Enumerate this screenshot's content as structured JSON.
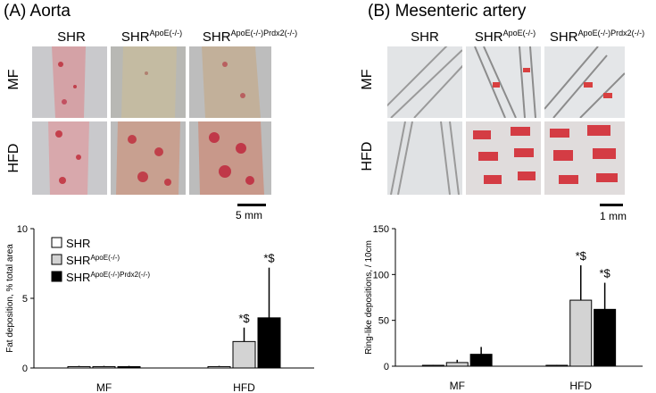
{
  "panelA": {
    "title": "(A) Aorta",
    "col_labels": [
      {
        "base": "SHR",
        "sup": ""
      },
      {
        "base": "SHR",
        "sup": "ApoE(-/-)"
      },
      {
        "base": "SHR",
        "sup": "ApoE(-/-)Prdx2(-/-)"
      }
    ],
    "row_labels": [
      "MF",
      "HFD"
    ],
    "scale_bar": "5 mm"
  },
  "panelB": {
    "title": "(B) Mesenteric artery",
    "col_labels": [
      {
        "base": "SHR",
        "sup": ""
      },
      {
        "base": "SHR",
        "sup": "ApoE(-/-)"
      },
      {
        "base": "SHR",
        "sup": "ApoE(-/-)Prdx2(-/-)"
      }
    ],
    "row_labels": [
      "MF",
      "HFD"
    ],
    "scale_bar": "1 mm"
  },
  "colors": {
    "shr": "#ffffff",
    "apoe": "#d3d3d3",
    "prdx2": "#000000",
    "stain": "#d8323c"
  },
  "chart_data": [
    {
      "type": "bar",
      "ylabel": "Fat deposition, % total area",
      "ylim": [
        0,
        10
      ],
      "yticks": [
        0,
        5,
        10
      ],
      "categories": [
        "MF",
        "HFD"
      ],
      "legend": "top-left",
      "series": [
        {
          "name": "SHR",
          "sup": "",
          "values": [
            0.1,
            0.1
          ],
          "errors": [
            0.05,
            0.05
          ]
        },
        {
          "name": "SHR",
          "sup": "ApoE(-/-)",
          "values": [
            0.1,
            1.9
          ],
          "errors": [
            0.05,
            1.0
          ]
        },
        {
          "name": "SHR",
          "sup": "ApoE(-/-)Prdx2(-/-)",
          "values": [
            0.1,
            3.6
          ],
          "errors": [
            0.05,
            3.6
          ]
        }
      ],
      "annotations": [
        {
          "category": 1,
          "series": 1,
          "text": "*$"
        },
        {
          "category": 1,
          "series": 2,
          "text": "*$"
        }
      ]
    },
    {
      "type": "bar",
      "ylabel": "Ring-like depositions,  / 10cm",
      "ylim": [
        0,
        150
      ],
      "yticks": [
        0,
        50,
        100,
        150
      ],
      "categories": [
        "MF",
        "HFD"
      ],
      "series": [
        {
          "name": "SHR",
          "sup": "",
          "values": [
            1,
            1
          ],
          "errors": [
            0.5,
            0.5
          ]
        },
        {
          "name": "SHR",
          "sup": "ApoE(-/-)",
          "values": [
            4,
            72
          ],
          "errors": [
            3,
            38
          ]
        },
        {
          "name": "SHR",
          "sup": "ApoE(-/-)Prdx2(-/-)",
          "values": [
            13,
            62
          ],
          "errors": [
            8,
            29
          ]
        }
      ],
      "annotations": [
        {
          "category": 1,
          "series": 1,
          "text": "*$"
        },
        {
          "category": 1,
          "series": 2,
          "text": "*$"
        }
      ]
    }
  ]
}
